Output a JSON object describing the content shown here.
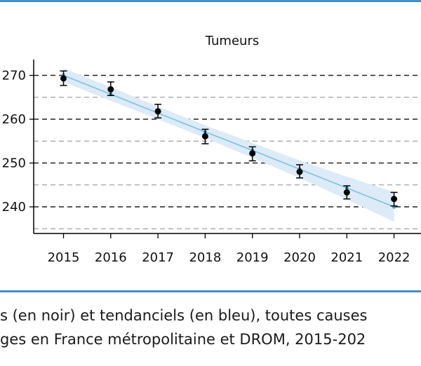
{
  "colors": {
    "rule": "#3f8fd0",
    "trend": "#7cc0e0",
    "band": "#dcebf7",
    "observed": "#000000",
    "grid": "#8a8a8a",
    "axis": "#000000"
  },
  "chart_data": {
    "type": "line",
    "title": "Tumeurs",
    "xlabel": "",
    "ylabel": "",
    "x": [
      "2015",
      "2016",
      "2017",
      "2018",
      "2019",
      "2020",
      "2021",
      "2022"
    ],
    "ylim": [
      233.5,
      272
    ],
    "yticks": [
      240,
      250,
      260,
      270
    ],
    "ytick_labels": [
      "240",
      "250",
      "260",
      "270"
    ],
    "minor_grid": [
      235,
      245,
      255,
      265
    ],
    "grid": "horizontal dashed",
    "series": [
      {
        "role": "observed",
        "color": "#000000",
        "values": [
          269.3,
          266.8,
          261.8,
          256.1,
          252.2,
          248.0,
          243.3,
          241.8
        ],
        "err_low": [
          267.7,
          265.4,
          260.3,
          254.4,
          250.5,
          246.6,
          241.8,
          240.2
        ],
        "err_high": [
          271.0,
          268.5,
          263.4,
          257.7,
          253.7,
          249.6,
          244.8,
          243.3
        ]
      },
      {
        "role": "trend",
        "color": "#7cc0e0",
        "values": [
          270.0,
          265.7,
          261.4,
          257.1,
          252.9,
          248.6,
          244.3,
          240.0
        ],
        "band_low": [
          268.5,
          264.2,
          260.0,
          255.7,
          251.2,
          246.6,
          241.7,
          236.6
        ],
        "band_high": [
          271.6,
          267.3,
          262.9,
          258.6,
          254.6,
          250.6,
          246.9,
          243.4
        ]
      }
    ]
  },
  "caption": {
    "line1": "s (en noir) et tendanciels (en bleu), toutes causes",
    "line2": "ges en France métropolitaine et DROM, 2015-202"
  }
}
